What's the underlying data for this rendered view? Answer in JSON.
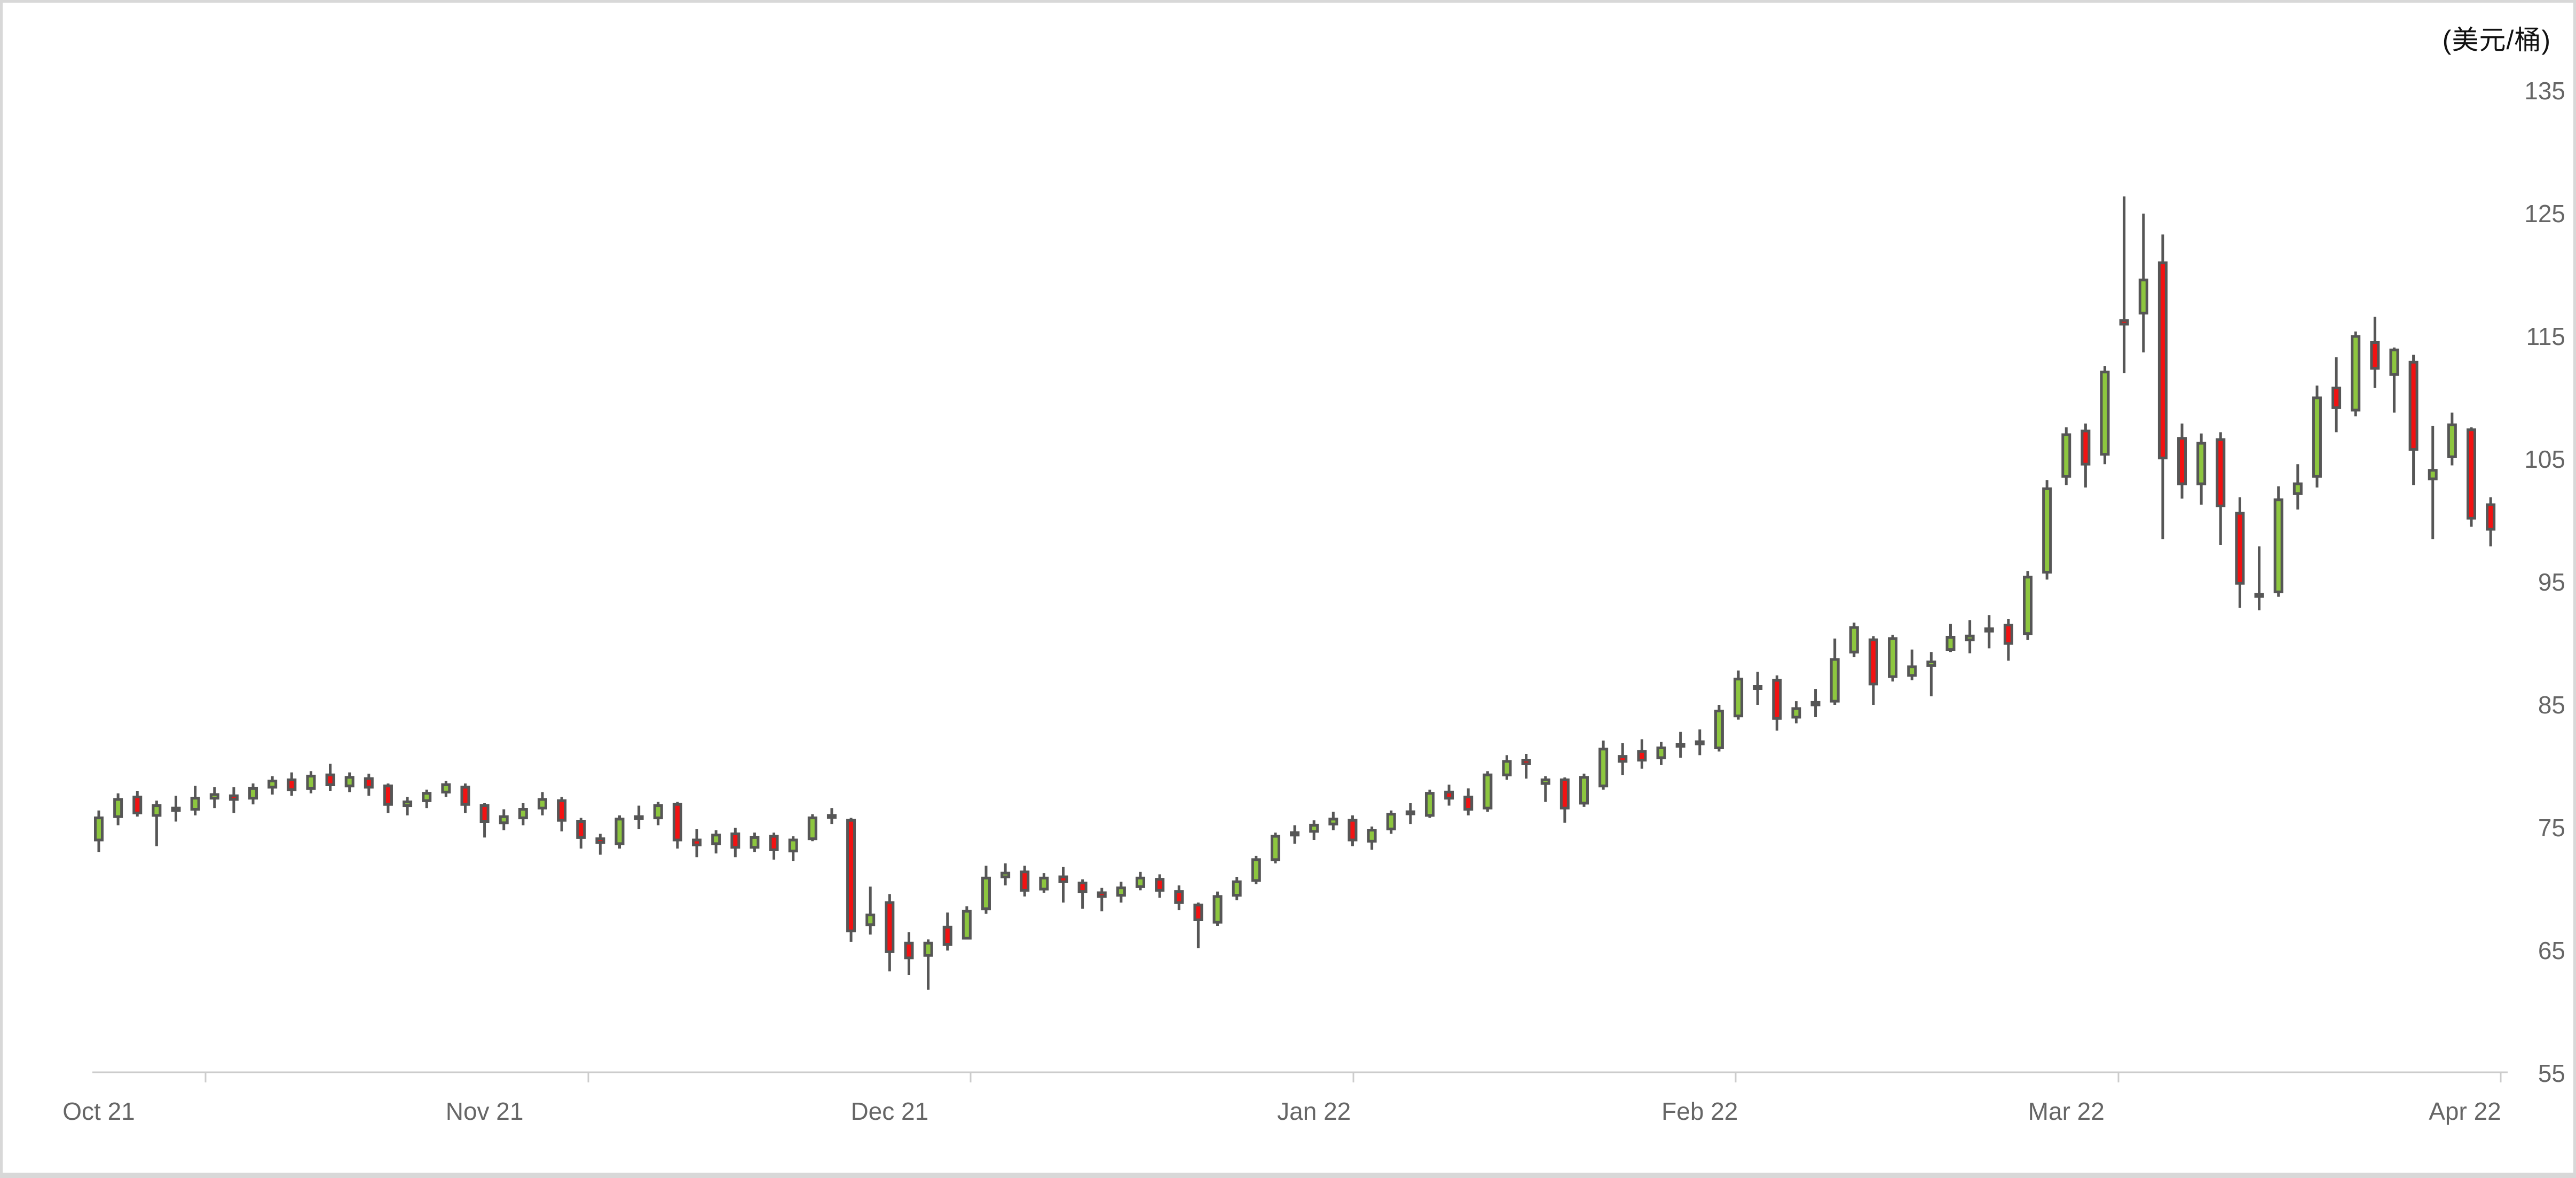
{
  "title": "(美元/桶)",
  "chart_data": {
    "type": "candlestick",
    "title": "(美元/桶)",
    "unit": "美元/桶",
    "ohlc_format": [
      "open",
      "high",
      "low",
      "close"
    ],
    "x_labels": [
      {
        "label": "Oct 21",
        "candle_index": 0
      },
      {
        "label": "Nov 21",
        "candle_index": 20
      },
      {
        "label": "Dec 21",
        "candle_index": 41
      },
      {
        "label": "Jan 22",
        "candle_index": 63
      },
      {
        "label": "Feb 22",
        "candle_index": 83
      },
      {
        "label": "Mar 22",
        "candle_index": 102
      },
      {
        "label": "Apr 22",
        "candle_index": 124
      }
    ],
    "y_axis": {
      "min": 55,
      "max": 135,
      "ticks": [
        135,
        125,
        115,
        105,
        95,
        85,
        75,
        65,
        55
      ],
      "position": "right"
    },
    "grid": false,
    "legend": false,
    "colors": {
      "up_fill": "#8DC63F",
      "down_fill": "#F21212",
      "outline": "#565656",
      "axis_line": "#CCCCCC",
      "axis_tick": "#CCCCCC",
      "axis_text": "#666666",
      "title_text": "#111111",
      "background": "#FFFFFF",
      "page_border": "#D8D8D8"
    },
    "candles": [
      [
        74.0,
        76.4,
        73.0,
        75.8
      ],
      [
        75.9,
        77.8,
        75.2,
        77.3
      ],
      [
        77.5,
        78.0,
        75.9,
        76.2
      ],
      [
        76.0,
        77.2,
        73.5,
        76.8
      ],
      [
        76.6,
        77.6,
        75.5,
        76.4
      ],
      [
        76.5,
        78.4,
        76.0,
        77.4
      ],
      [
        77.4,
        78.3,
        76.6,
        77.7
      ],
      [
        77.6,
        78.3,
        76.2,
        77.3
      ],
      [
        77.4,
        78.6,
        76.9,
        78.2
      ],
      [
        78.3,
        79.2,
        77.7,
        78.8
      ],
      [
        78.9,
        79.5,
        77.6,
        78.1
      ],
      [
        78.2,
        79.6,
        77.8,
        79.2
      ],
      [
        79.3,
        80.2,
        78.0,
        78.5
      ],
      [
        78.4,
        79.5,
        77.9,
        79.1
      ],
      [
        79.0,
        79.4,
        77.6,
        78.3
      ],
      [
        78.4,
        78.6,
        76.2,
        76.9
      ],
      [
        76.8,
        77.5,
        76.0,
        77.1
      ],
      [
        77.2,
        78.1,
        76.6,
        77.8
      ],
      [
        77.9,
        78.8,
        77.5,
        78.5
      ],
      [
        78.3,
        78.6,
        76.2,
        76.9
      ],
      [
        76.8,
        77.0,
        74.2,
        75.5
      ],
      [
        75.4,
        76.5,
        74.8,
        75.9
      ],
      [
        75.8,
        77.0,
        75.2,
        76.5
      ],
      [
        76.6,
        77.9,
        76.0,
        77.3
      ],
      [
        77.2,
        77.5,
        74.7,
        75.6
      ],
      [
        75.5,
        75.8,
        73.3,
        74.2
      ],
      [
        74.1,
        74.5,
        72.8,
        73.8
      ],
      [
        73.7,
        76.0,
        73.3,
        75.7
      ],
      [
        75.8,
        76.8,
        74.9,
        75.9
      ],
      [
        75.8,
        77.1,
        75.2,
        76.8
      ],
      [
        76.9,
        77.1,
        73.3,
        74.0
      ],
      [
        74.0,
        74.9,
        72.6,
        73.6
      ],
      [
        73.7,
        74.8,
        72.9,
        74.4
      ],
      [
        74.5,
        75.0,
        72.6,
        73.4
      ],
      [
        73.4,
        74.6,
        73.0,
        74.2
      ],
      [
        74.3,
        74.6,
        72.4,
        73.2
      ],
      [
        73.1,
        74.3,
        72.3,
        74.0
      ],
      [
        74.1,
        76.1,
        73.9,
        75.8
      ],
      [
        75.9,
        76.6,
        75.3,
        76.0
      ],
      [
        75.6,
        75.8,
        65.7,
        66.6
      ],
      [
        67.1,
        70.2,
        66.3,
        67.9
      ],
      [
        68.9,
        69.6,
        63.3,
        64.9
      ],
      [
        65.6,
        66.5,
        63.0,
        64.4
      ],
      [
        64.6,
        65.9,
        61.8,
        65.6
      ],
      [
        66.9,
        68.1,
        65.0,
        65.5
      ],
      [
        66.0,
        68.6,
        65.9,
        68.2
      ],
      [
        68.4,
        71.9,
        68.0,
        70.9
      ],
      [
        71.0,
        72.1,
        70.3,
        71.3
      ],
      [
        71.4,
        71.9,
        69.4,
        69.9
      ],
      [
        70.0,
        71.3,
        69.7,
        70.9
      ],
      [
        71.0,
        71.8,
        68.9,
        70.6
      ],
      [
        70.5,
        70.8,
        68.4,
        69.8
      ],
      [
        69.7,
        70.1,
        68.2,
        69.4
      ],
      [
        69.5,
        70.6,
        68.9,
        70.1
      ],
      [
        70.2,
        71.4,
        69.9,
        70.9
      ],
      [
        70.8,
        71.2,
        69.3,
        69.9
      ],
      [
        69.8,
        70.3,
        68.3,
        68.9
      ],
      [
        68.7,
        68.9,
        65.2,
        67.5
      ],
      [
        67.3,
        69.8,
        67.0,
        69.4
      ],
      [
        69.5,
        71.0,
        69.1,
        70.6
      ],
      [
        70.7,
        72.7,
        70.4,
        72.4
      ],
      [
        72.4,
        74.6,
        72.1,
        74.3
      ],
      [
        74.4,
        75.2,
        73.7,
        74.6
      ],
      [
        74.7,
        75.6,
        74.0,
        75.2
      ],
      [
        75.3,
        76.3,
        74.8,
        75.7
      ],
      [
        75.6,
        76.0,
        73.5,
        74.0
      ],
      [
        73.9,
        75.1,
        73.2,
        74.8
      ],
      [
        74.9,
        76.4,
        74.5,
        76.1
      ],
      [
        76.2,
        77.0,
        75.3,
        76.3
      ],
      [
        76.0,
        78.1,
        75.8,
        77.8
      ],
      [
        77.9,
        78.5,
        76.8,
        77.4
      ],
      [
        77.5,
        78.2,
        76.0,
        76.5
      ],
      [
        76.6,
        79.6,
        76.3,
        79.3
      ],
      [
        79.3,
        80.9,
        78.9,
        80.4
      ],
      [
        80.5,
        81.0,
        79.0,
        80.2
      ],
      [
        78.6,
        79.2,
        77.1,
        78.9
      ],
      [
        78.9,
        79.1,
        75.4,
        76.6
      ],
      [
        77.0,
        79.4,
        76.7,
        79.1
      ],
      [
        78.4,
        82.1,
        78.1,
        81.4
      ],
      [
        80.8,
        81.9,
        79.3,
        80.4
      ],
      [
        81.2,
        82.2,
        79.8,
        80.5
      ],
      [
        80.7,
        82.0,
        80.1,
        81.5
      ],
      [
        81.7,
        82.8,
        80.7,
        81.8
      ],
      [
        81.9,
        83.0,
        80.9,
        82.0
      ],
      [
        81.5,
        85.0,
        81.2,
        84.5
      ],
      [
        84.1,
        87.8,
        83.8,
        87.1
      ],
      [
        86.5,
        87.7,
        85.0,
        86.4
      ],
      [
        87.0,
        87.4,
        82.9,
        83.9
      ],
      [
        84.0,
        85.3,
        83.5,
        84.7
      ],
      [
        85.2,
        86.3,
        84.0,
        85.0
      ],
      [
        85.3,
        90.4,
        85.0,
        88.7
      ],
      [
        89.3,
        91.7,
        88.9,
        91.3
      ],
      [
        90.3,
        90.6,
        85.0,
        86.7
      ],
      [
        87.3,
        90.7,
        86.9,
        90.4
      ],
      [
        87.4,
        89.5,
        87.0,
        88.1
      ],
      [
        88.2,
        89.3,
        85.7,
        88.5
      ],
      [
        89.5,
        91.6,
        89.3,
        90.5
      ],
      [
        90.3,
        91.9,
        89.2,
        90.6
      ],
      [
        91.2,
        92.3,
        89.6,
        91.0
      ],
      [
        91.5,
        92.0,
        88.6,
        90.0
      ],
      [
        90.8,
        95.9,
        90.3,
        95.4
      ],
      [
        95.8,
        103.3,
        95.2,
        102.6
      ],
      [
        103.6,
        107.6,
        102.9,
        107.0
      ],
      [
        107.3,
        107.9,
        102.7,
        104.6
      ],
      [
        105.4,
        112.6,
        104.6,
        112.1
      ],
      [
        116.3,
        126.4,
        112.0,
        116.0
      ],
      [
        116.9,
        125.0,
        113.7,
        119.6
      ],
      [
        121.0,
        123.3,
        98.5,
        105.1
      ],
      [
        106.7,
        107.9,
        101.8,
        103.0
      ],
      [
        103.0,
        107.1,
        101.3,
        106.3
      ],
      [
        106.6,
        107.2,
        98.0,
        101.2
      ],
      [
        100.6,
        101.9,
        92.9,
        94.9
      ],
      [
        94.0,
        97.9,
        92.7,
        93.9
      ],
      [
        94.2,
        102.8,
        93.8,
        101.7
      ],
      [
        102.2,
        104.6,
        100.9,
        103.0
      ],
      [
        103.6,
        111.0,
        102.7,
        110.0
      ],
      [
        110.8,
        113.3,
        107.2,
        109.2
      ],
      [
        109.0,
        115.4,
        108.5,
        115.0
      ],
      [
        114.5,
        116.6,
        110.8,
        112.4
      ],
      [
        111.9,
        114.1,
        108.8,
        113.9
      ],
      [
        112.9,
        113.5,
        102.9,
        105.8
      ],
      [
        103.4,
        107.7,
        98.5,
        104.1
      ],
      [
        105.2,
        108.8,
        104.5,
        107.8
      ],
      [
        107.4,
        107.6,
        99.5,
        100.2
      ],
      [
        101.3,
        101.9,
        97.9,
        99.3
      ]
    ]
  }
}
